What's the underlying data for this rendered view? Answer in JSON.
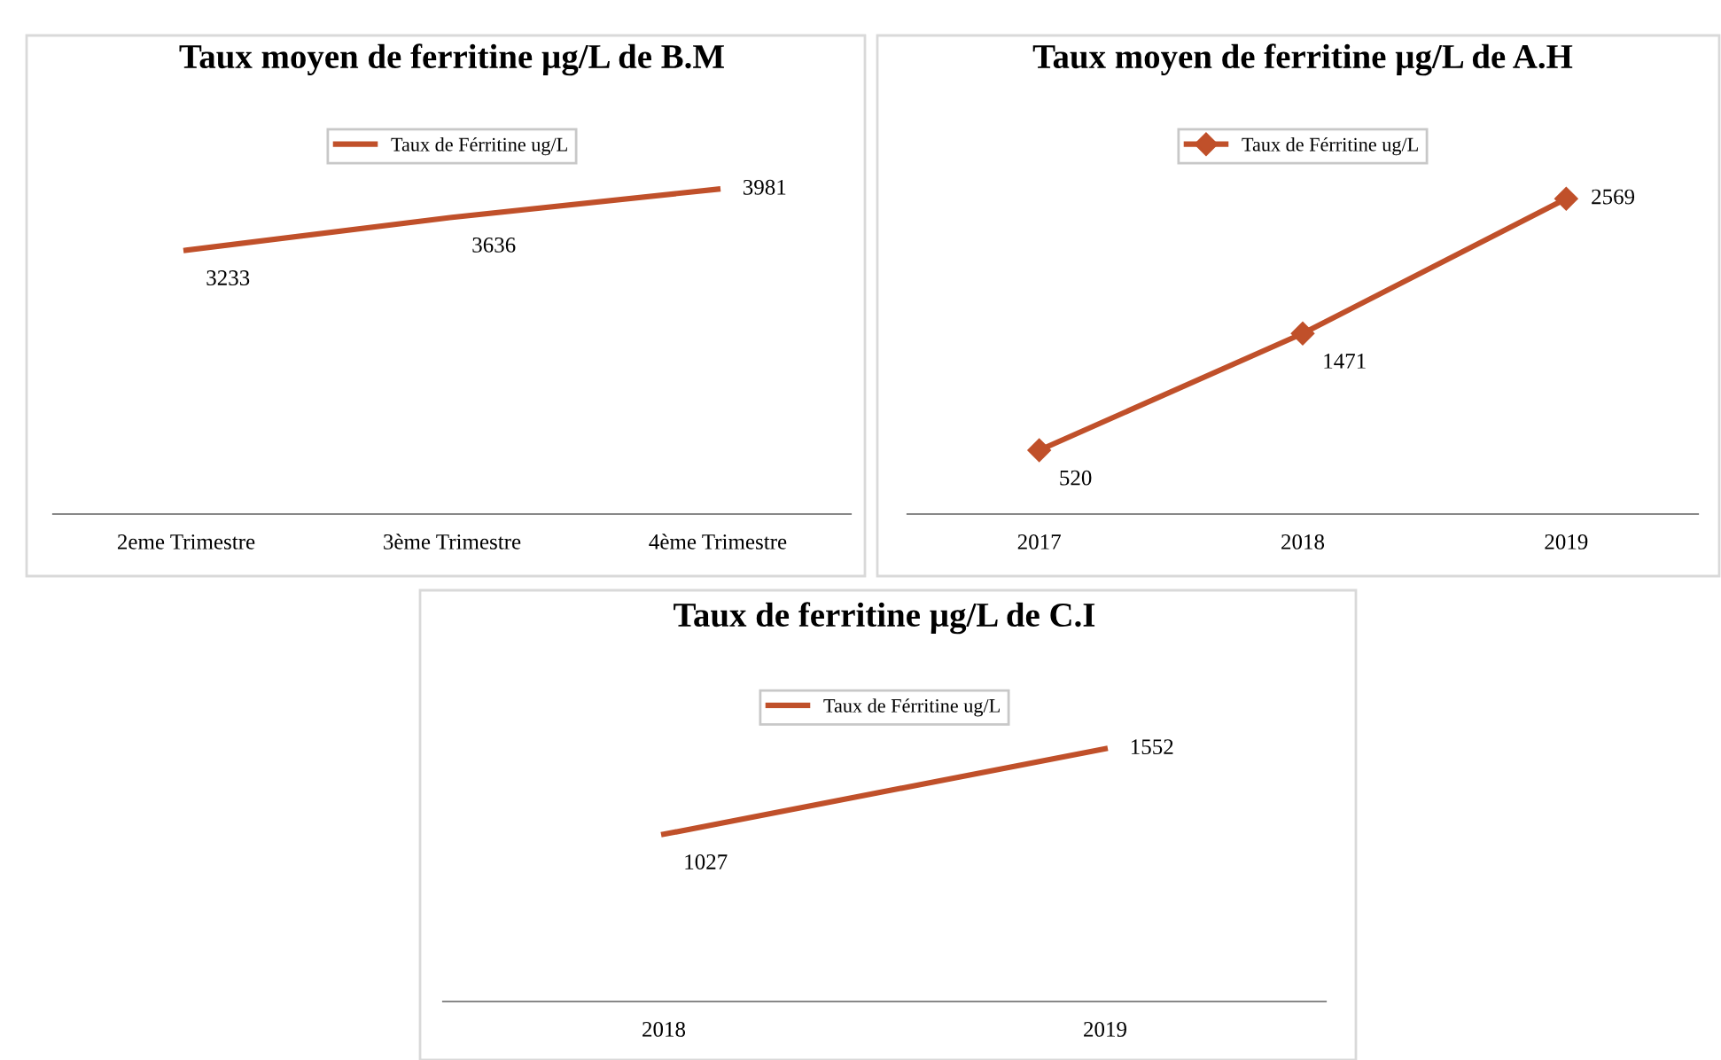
{
  "chart_data": [
    {
      "type": "line",
      "title": "Taux moyen de ferritine µg/L de B.M",
      "categories": [
        "2eme Trimestre",
        "3ème Trimestre",
        "4ème Trimestre"
      ],
      "series": [
        {
          "name": "Taux de Férritine ug/L",
          "color": "#c0502a",
          "values": [
            3233,
            3636,
            3981
          ]
        }
      ],
      "data_labels": true,
      "legend": "top",
      "grid": false,
      "marker": "none"
    },
    {
      "type": "line",
      "title": "Taux moyen de ferritine µg/L de A.H",
      "categories": [
        "2017",
        "2018",
        "2019"
      ],
      "series": [
        {
          "name": "Taux de Férritine ug/L",
          "color": "#c0502a",
          "values": [
            520,
            1471,
            2569
          ]
        }
      ],
      "data_labels": true,
      "legend": "top",
      "grid": false,
      "marker": "diamond"
    },
    {
      "type": "line",
      "title": "Taux de ferritine µg/L de C.I",
      "categories": [
        "2018",
        "2019"
      ],
      "series": [
        {
          "name": "Taux de Férritine ug/L",
          "color": "#c0502a",
          "values": [
            1027,
            1552
          ]
        }
      ],
      "data_labels": true,
      "legend": "top",
      "grid": false,
      "marker": "none"
    }
  ]
}
